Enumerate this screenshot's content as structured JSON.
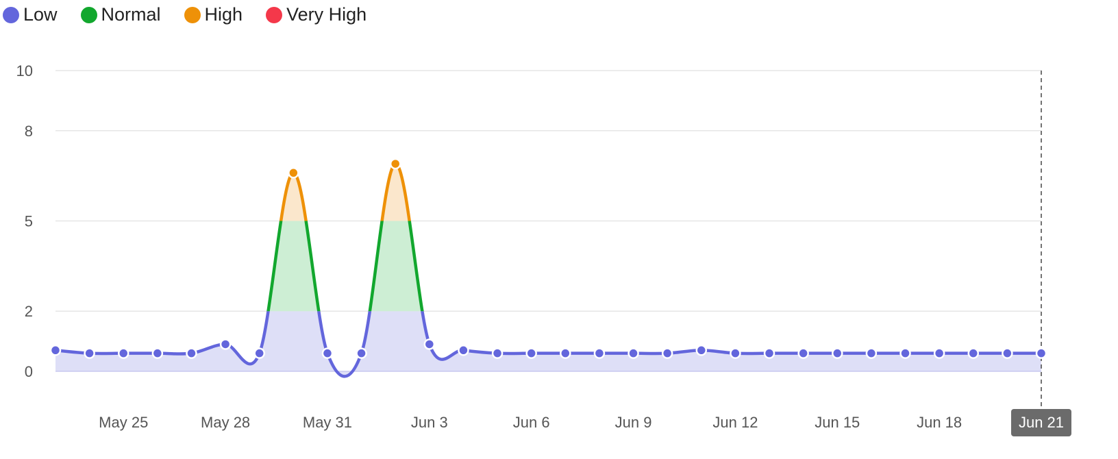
{
  "legend": [
    {
      "label": "Low",
      "color": "#6366dc"
    },
    {
      "label": "Normal",
      "color": "#12a72e"
    },
    {
      "label": "High",
      "color": "#ee9108"
    },
    {
      "label": "Very High",
      "color": "#f4384a"
    }
  ],
  "chart_data": {
    "type": "line",
    "x": [
      "May 23",
      "May 24",
      "May 25",
      "May 26",
      "May 27",
      "May 28",
      "May 29",
      "May 30",
      "May 31",
      "Jun 1",
      "Jun 2",
      "Jun 3",
      "Jun 4",
      "Jun 5",
      "Jun 6",
      "Jun 7",
      "Jun 8",
      "Jun 9",
      "Jun 10",
      "Jun 11",
      "Jun 12",
      "Jun 13",
      "Jun 14",
      "Jun 15",
      "Jun 16",
      "Jun 17",
      "Jun 18",
      "Jun 19",
      "Jun 20",
      "Jun 21"
    ],
    "values": [
      0.7,
      0.6,
      0.6,
      0.6,
      0.6,
      0.9,
      0.6,
      6.6,
      0.6,
      0.6,
      6.9,
      0.9,
      0.7,
      0.6,
      0.6,
      0.6,
      0.6,
      0.6,
      0.6,
      0.7,
      0.6,
      0.6,
      0.6,
      0.6,
      0.6,
      0.6,
      0.6,
      0.6,
      0.6,
      0.6
    ],
    "yticks": [
      0,
      2,
      5,
      8,
      10
    ],
    "ylim": [
      0,
      10
    ],
    "xtick_labels": [
      {
        "label": "May 25",
        "index": 2
      },
      {
        "label": "May 28",
        "index": 5
      },
      {
        "label": "May 31",
        "index": 8
      },
      {
        "label": "Jun 3",
        "index": 11
      },
      {
        "label": "Jun 6",
        "index": 14
      },
      {
        "label": "Jun 9",
        "index": 17
      },
      {
        "label": "Jun 12",
        "index": 20
      },
      {
        "label": "Jun 15",
        "index": 23
      },
      {
        "label": "Jun 18",
        "index": 26
      }
    ],
    "bands": [
      {
        "name": "Low",
        "from": 0,
        "to": 2,
        "color": "#6366dc",
        "fill": "#dedff7"
      },
      {
        "name": "Normal",
        "from": 2,
        "to": 5,
        "color": "#12a72e",
        "fill": "#cdeed4"
      },
      {
        "name": "High",
        "from": 5,
        "to": 8,
        "color": "#ee9108",
        "fill": "#fbe7cc"
      },
      {
        "name": "Very High",
        "from": 8,
        "to": 10,
        "color": "#f4384a",
        "fill": "#fcd3d7"
      }
    ],
    "grid": true,
    "legend_position": "top-left",
    "crosshair_label": "Jun 21"
  }
}
